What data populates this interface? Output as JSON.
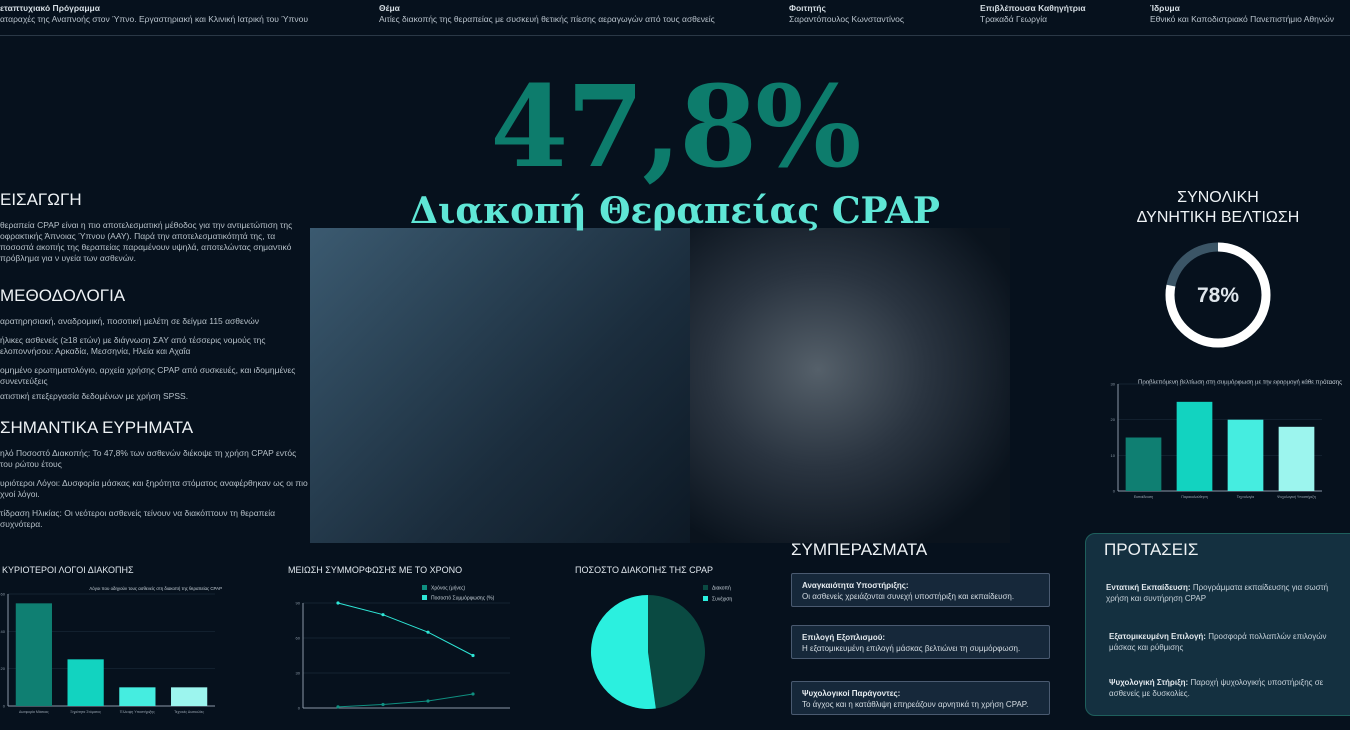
{
  "header": [
    {
      "label": "εταπτυχιακό Πρόγραμμα",
      "value": "αταραχές της Αναπνοής στον Ύπνο. Εργαστηριακή και Κλινική Ιατρική του Ύπνου"
    },
    {
      "label": "Θέμα",
      "value": "Αιτίες διακοπής της θεραπείας με συσκευή θετικής πίεσης αεραγωγών από τους ασθενείς"
    },
    {
      "label": "Φοιτητής",
      "value": "Σαραντόπουλος Κωνσταντίνος"
    },
    {
      "label": "Επιβλέπουσα Καθηγήτρια",
      "value": "Τρακαδά Γεωργία"
    },
    {
      "label": "Ίδρυμα",
      "value": "Εθνικό και Καποδιστριακό Πανεπιστήμιο Αθηνών"
    }
  ],
  "hero": {
    "value": "47,8%",
    "title": "Διακοπή Θεραπείας CPAP"
  },
  "intro": {
    "title": "ΕΙΣΑΓΩΓΗ",
    "text": "θεραπεία CPAP είναι η πιο αποτελεσματική μέθοδος για την αντιμετώπιση της οφρακτικής Άπνοιας Ύπνου (ΑΑΥ). Παρά την αποτελεσματικότητά της, τα ποσοστά ακοπής της θεραπείας παραμένουν υψηλά, αποτελώντας σημαντικό πρόβλημα για ν υγεία των ασθενών."
  },
  "method": {
    "title": "ΜΕΘΟΔΟΛΟΓΙΑ",
    "items": [
      "αρατηρησιακή, αναδρομική, ποσοτική μελέτη σε δείγμα 115 ασθενών",
      "ήλικες ασθενείς (≥18 ετών) με διάγνωση ΣΑΥ από τέσσερις νομούς της ελοποννήσου: Αρκαδία, Μεσσηνία, Ηλεία και Αχαΐα",
      "ομημένο ερωτηματολόγιο, αρχεία χρήσης CPAP από συσκευές, και ιδομημένες συνεντεύξεις",
      "ατιστική επεξεργασία δεδομένων με χρήση SPSS."
    ]
  },
  "findings": {
    "title": "ΣΗΜΑΝΤΙΚΑ ΕΥΡΗΜΑΤΑ",
    "items": [
      "ηλό Ποσοστό Διακοπής: Το 47,8% των ασθενών διέκοψε τη χρήση CPAP εντός του ρώτου έτους",
      "υριότεροι Λόγοι: Δυσφορία μάσκας και ξηρότητα στόματος αναφέρθηκαν ως οι πιο χνοί λόγοι.",
      "τίδραση Ηλικίας: Οι νεότεροι ασθενείς τείνουν να διακόπτουν τη θεραπεία συχνότερα."
    ]
  },
  "improvement": {
    "title_line1": "ΣΥΝΟΛΙΚΗ",
    "title_line2": "ΔΥΝΗΤΙΚΗ ΒΕΛΤΙΩΣΗ",
    "value": "78%",
    "fraction": 0.78,
    "ring_color": "#ffffff",
    "track_color": "#3b5566"
  },
  "conclusions": {
    "title": "ΣΥΜΠΕΡΑΣΜΑΤΑ",
    "items": [
      {
        "head": "Αναγκαιότητα Υποστήριξης:",
        "text": "Οι ασθενείς χρειάζονται συνεχή υποστήριξη και εκπαίδευση."
      },
      {
        "head": "Επιλογή Εξοπλισμού:",
        "text": "Η εξατομικευμένη επιλογή μάσκας βελτιώνει τη συμμόρφωση."
      },
      {
        "head": "Ψυχολογικοί Παράγοντες:",
        "text": "Το άγχος και η κατάθλιψη επηρεάζουν αρνητικά τη χρήση CPAP."
      }
    ]
  },
  "proposals": {
    "title": "ΠΡΟΤΑΣΕΙΣ",
    "items": [
      {
        "head": "Εντατική Εκπαίδευση:",
        "text": "Προγράμματα εκπαίδευσης για σωστή χρήση και συντήρηση CPAP"
      },
      {
        "head": "Εξατομικευμένη Επιλογή:",
        "text": "Προσφορά πολλαπλών επιλογών μάσκας και ρύθμισης"
      },
      {
        "head": "Ψυχολογική Στήριξη:",
        "text": "Παροχή ψυχολογικής υποστήριξης σε ασθενείς με δυσκολίες."
      }
    ]
  },
  "chart_data": [
    {
      "id": "reasons",
      "type": "bar",
      "section_title": "ΚΥΡΙΟΤΕΡΟΙ ΛΟΓΟΙ ΔΙΑΚΟΠΗΣ",
      "title": "Λόγοι που οδηγούν τους ασθενείς στη διακοπή της θεραπείας CPAP",
      "categories": [
        "Δυσφορία Μάσκας",
        "Ξηρότητα Στόματος",
        "Έλλειψη Υποστήριξης",
        "Τεχνικές Δυσκολίες"
      ],
      "values": [
        55,
        25,
        10,
        10
      ],
      "ylim": [
        0,
        60
      ],
      "yticks": [
        0,
        20,
        40,
        60
      ],
      "colors": [
        "#0f7f72",
        "#12d3c0",
        "#45ede0",
        "#9cf5ee"
      ],
      "grid": true
    },
    {
      "id": "compliance",
      "type": "line",
      "section_title": "ΜΕΙΩΣΗ ΣΥΜΜΟΡΦΩΣΗΣ ΜΕ ΤΟ ΧΡΟΝΟ",
      "x": [
        1,
        2,
        3,
        4
      ],
      "series": [
        {
          "name": "Χρόνος (μήνες)",
          "values": [
            1,
            3,
            6,
            12
          ],
          "color": "#0f8f80"
        },
        {
          "name": "Ποσοστό Συμμόρφωσης (%)",
          "values": [
            90,
            80,
            65,
            45
          ],
          "color": "#2ee6d6"
        }
      ],
      "ylim": [
        0,
        90
      ],
      "yticks": [
        0,
        30,
        60,
        90
      ],
      "legend": "top-right",
      "grid": true
    },
    {
      "id": "pie",
      "type": "pie",
      "section_title": "ΠΟΣΟΣΤΟ ΔΙΑΚΟΠΗΣ ΤΗΣ CPAP",
      "labels": [
        "Διακοπή",
        "Συνέχιση"
      ],
      "values": [
        47.8,
        52.2
      ],
      "colors": [
        "#0a4a42",
        "#2bf0df"
      ],
      "legend": "top-right"
    },
    {
      "id": "improve",
      "type": "bar",
      "title": "Προβλεπόμενη βελτίωση στη συμμόρφωση με την εφαρμογή κάθε πρότασης",
      "categories": [
        "Εκπαίδευση",
        "Παρακολούθηση",
        "Τεχνολογία",
        "Ψυχολογική Υποστήριξη"
      ],
      "values": [
        15,
        25,
        20,
        18
      ],
      "ylim": [
        0,
        30
      ],
      "yticks": [
        0,
        10,
        20,
        30
      ],
      "colors": [
        "#0f7f72",
        "#12d3c0",
        "#45ede0",
        "#9cf5ee"
      ],
      "grid": true
    }
  ]
}
